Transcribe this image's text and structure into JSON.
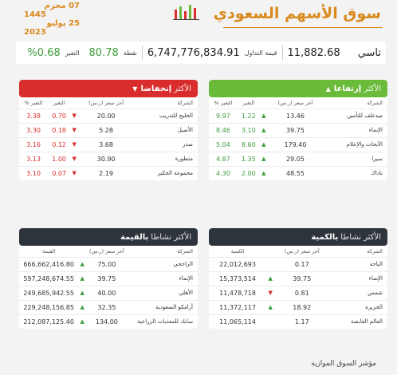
{
  "header": {
    "title": "سوق الأسهم السعودي",
    "hijri_day": "07",
    "hijri_month": "محرم",
    "hijri_year": "1445",
    "greg_day": "25",
    "greg_month": "يوليو",
    "greg_year": "2023"
  },
  "summary": {
    "index_name": "تاسي",
    "index_value": "11,882.68",
    "turnover_label": "قيمة التداول",
    "turnover_value": "6,747,776,834.91",
    "points_label": "نقطة",
    "points_value": "80.78",
    "change_label": "التغير",
    "change_value": "%0.68"
  },
  "colors": {
    "up": "#6bbb3a",
    "down": "#d92d2d",
    "dark": "#2e343c",
    "accent": "#d98a1e"
  },
  "gainers": {
    "title_light": "الأكثر",
    "title_bold": "إرتفاعا",
    "columns": [
      "الشركة",
      "آخر سعر (ر.س)",
      "التغير",
      "التغير %"
    ],
    "rows": [
      {
        "name": "ميدغلف للتأمين",
        "price": "13.46",
        "change": "1.22",
        "pct": "9.97"
      },
      {
        "name": "الإنماء",
        "price": "39.75",
        "change": "3.10",
        "pct": "8.46"
      },
      {
        "name": "الأبحاث والإعلام",
        "price": "179.40",
        "change": "8.60",
        "pct": "5.04"
      },
      {
        "name": "سيرا",
        "price": "29.05",
        "change": "1.35",
        "pct": "4.87"
      },
      {
        "name": "ناداك",
        "price": "48.55",
        "change": "2.00",
        "pct": "4.30"
      }
    ]
  },
  "losers": {
    "title_light": "الأكثر",
    "title_bold": "إنخفاضا",
    "columns": [
      "الشركة",
      "آخر سعر (ر.س)",
      "التغير",
      "التغير %"
    ],
    "rows": [
      {
        "name": "الخليج للتدريب",
        "price": "20.00",
        "change": "0.70",
        "pct": "3.38"
      },
      {
        "name": "الأصيل",
        "price": "5.28",
        "change": "0.18",
        "pct": "3.30"
      },
      {
        "name": "صدر",
        "price": "3.68",
        "change": "0.12",
        "pct": "3.16"
      },
      {
        "name": "متطورة",
        "price": "30.90",
        "change": "1.00",
        "pct": "3.13"
      },
      {
        "name": "مجموعة الحكير",
        "price": "2.19",
        "change": "0.07",
        "pct": "3.10"
      }
    ]
  },
  "by_volume": {
    "title_light": "الأكثر نشاطا",
    "title_bold": "بالكمية",
    "columns": [
      "الشركة",
      "آخر سعر (ر.س)",
      "الكمية"
    ],
    "rows": [
      {
        "name": "الباحة",
        "price": "0.17",
        "dir": "none",
        "qty": "22,012,693"
      },
      {
        "name": "الإنماء",
        "price": "39.75",
        "dir": "up",
        "qty": "15,373,514"
      },
      {
        "name": "شمس",
        "price": "0.81",
        "dir": "down",
        "qty": "11,478,718"
      },
      {
        "name": "الجزيرة",
        "price": "18.92",
        "dir": "up",
        "qty": "11,372,117"
      },
      {
        "name": "العالم القابضة",
        "price": "1.17",
        "dir": "none",
        "qty": "11,065,114"
      }
    ]
  },
  "by_value": {
    "title_light": "الأكثر نشاطا",
    "title_bold": "بالقيمة",
    "columns": [
      "الشركة",
      "آخر سعر (ر.س)",
      "القيمة"
    ],
    "rows": [
      {
        "name": "الراجحي",
        "price": "75.00",
        "dir": "up",
        "value": "666,662,416.80"
      },
      {
        "name": "الإنماء",
        "price": "39.75",
        "dir": "up",
        "value": "597,248,674.55"
      },
      {
        "name": "الأهلي",
        "price": "40.00",
        "dir": "up",
        "value": "249,685,942.55"
      },
      {
        "name": "أرامكو السعودية",
        "price": "32.35",
        "dir": "up",
        "value": "229,248,156.85"
      },
      {
        "name": "سابك للمغذيات الزراعية",
        "price": "134.00",
        "dir": "up",
        "value": "212,087,125.40"
      }
    ]
  },
  "footer": "مؤشر السوق الموازية"
}
